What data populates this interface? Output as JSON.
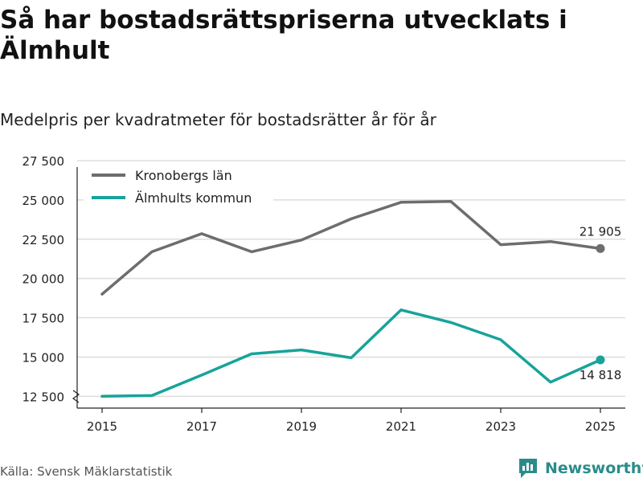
{
  "title": "Så har bostadsrättspriserna utvecklats i Älmhult",
  "subtitle": "Medelpris per kvadratmeter för bostadsrätter år för år",
  "source": "Källa: Svensk Mäklarstatistik",
  "brand": "Newsworthy",
  "colors": {
    "county": "#6d6d6d",
    "municipality": "#17a39a",
    "grid": "#dddddd",
    "brand": "#2a8c8a"
  },
  "chart_data": {
    "type": "line",
    "x": [
      2015,
      2016,
      2017,
      2018,
      2019,
      2020,
      2021,
      2022,
      2023,
      2024,
      2025
    ],
    "xticks": [
      2015,
      2017,
      2019,
      2021,
      2023,
      2025
    ],
    "xtick_labels": [
      "2015",
      "2017",
      "2019",
      "2021",
      "2023",
      "2025"
    ],
    "yticks": [
      12500,
      15000,
      17500,
      20000,
      22500,
      25000,
      27500
    ],
    "ytick_labels": [
      "12 500",
      "15 000",
      "17 500",
      "20 000",
      "22 500",
      "25 000",
      "27 500"
    ],
    "ylim": [
      11750,
      27500
    ],
    "xlim": [
      2014.5,
      2025.5
    ],
    "legend_position": "top-left",
    "series": [
      {
        "name": "Kronobergs län",
        "color": "#6d6d6d",
        "values": [
          19000,
          21700,
          22850,
          21700,
          22450,
          23800,
          24850,
          24900,
          22150,
          22350,
          21905
        ],
        "end_label": "21 905"
      },
      {
        "name": "Älmhults kommun",
        "color": "#17a39a",
        "values": [
          12500,
          12550,
          13850,
          15200,
          15450,
          14950,
          18000,
          17200,
          16100,
          13400,
          14818
        ],
        "end_label": "14 818"
      }
    ]
  }
}
